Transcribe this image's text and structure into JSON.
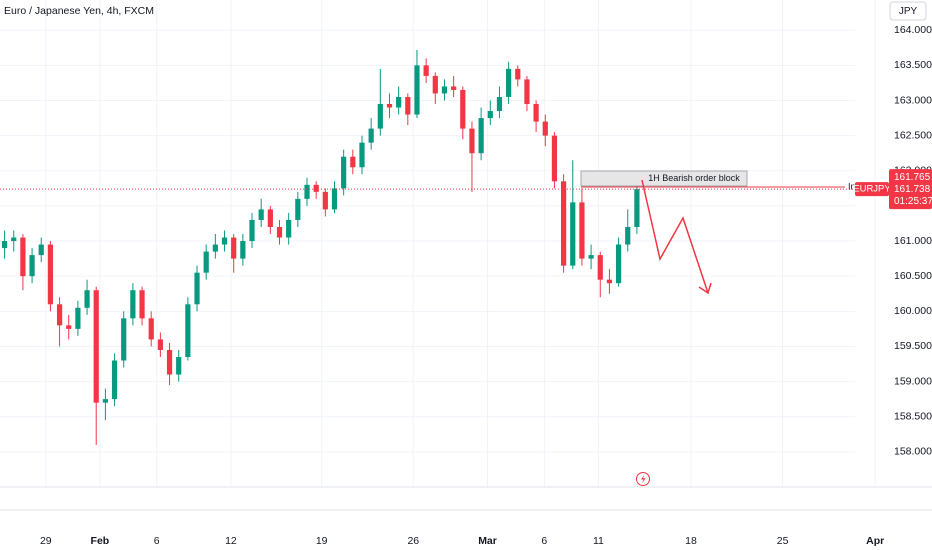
{
  "chart_data": {
    "type": "candlestick",
    "title": "Euro / Japanese Yen, 4h, FXCM",
    "currency": "JPY",
    "symbol_label": "EURJPY",
    "last_price": 161.738,
    "upper_price": 161.765,
    "countdown": "01:25:37",
    "truncated_label": "In",
    "annotation": "1H Bearish order block",
    "up_color": "#089981",
    "down_color": "#f23645",
    "grid": true,
    "xlim": [
      -0.5,
      100
    ],
    "xticks": [
      {
        "value": 4.5,
        "label": "29"
      },
      {
        "value": 10.4,
        "label": "Feb"
      },
      {
        "value": 16.6,
        "label": "6"
      },
      {
        "value": 24.7,
        "label": "12"
      },
      {
        "value": 34.6,
        "label": "19"
      },
      {
        "value": 44.6,
        "label": "26"
      },
      {
        "value": 52.7,
        "label": "Mar"
      },
      {
        "value": 58.9,
        "label": "6"
      },
      {
        "value": 64.8,
        "label": "11"
      },
      {
        "value": 74.9,
        "label": "18"
      },
      {
        "value": 84.9,
        "label": "25"
      },
      {
        "value": 95.0,
        "label": "Apr"
      }
    ],
    "ylim": [
      157.5,
      164.43
    ],
    "yticks": [
      {
        "value": 158,
        "label": "158.000"
      },
      {
        "value": 158.5,
        "label": "158.500"
      },
      {
        "value": 159,
        "label": "159.000"
      },
      {
        "value": 159.5,
        "label": "159.500"
      },
      {
        "value": 160,
        "label": "160.000"
      },
      {
        "value": 160.5,
        "label": "160.500"
      },
      {
        "value": 161,
        "label": "161.000"
      },
      {
        "value": 161.5,
        "label": "161.500"
      },
      {
        "value": 162,
        "label": "162.000"
      },
      {
        "value": 162.5,
        "label": "162.500"
      },
      {
        "value": 163,
        "label": "163.000"
      },
      {
        "value": 163.5,
        "label": "163.500"
      },
      {
        "value": 164,
        "label": "164.000"
      }
    ],
    "open": [
      160.9,
      161.0,
      161.05,
      160.5,
      160.8,
      160.95,
      160.1,
      159.8,
      159.75,
      160.05,
      160.3,
      158.7,
      158.75,
      159.3,
      159.9,
      160.3,
      159.9,
      159.6,
      159.45,
      159.1,
      159.35,
      160.1,
      160.55,
      160.85,
      160.95,
      161.05,
      160.75,
      161.0,
      161.3,
      161.45,
      161.2,
      161.05,
      161.3,
      161.6,
      161.8,
      161.7,
      161.45,
      161.75,
      162.2,
      162.05,
      162.4,
      162.6,
      162.95,
      162.9,
      163.05,
      162.8,
      163.5,
      163.35,
      163.1,
      163.2,
      163.15,
      162.6,
      162.25,
      162.75,
      162.85,
      163.05,
      163.45,
      163.3,
      162.95,
      162.7,
      162.5,
      161.85,
      160.65,
      161.55,
      160.75,
      160.8,
      160.45,
      160.4,
      160.95,
      161.2
    ],
    "high": [
      161.15,
      161.15,
      161.1,
      160.9,
      161.05,
      161.0,
      160.2,
      159.95,
      160.15,
      160.45,
      160.35,
      158.9,
      159.4,
      160.0,
      160.4,
      160.35,
      160.0,
      159.7,
      159.55,
      159.45,
      160.2,
      160.65,
      160.95,
      161.1,
      161.15,
      161.1,
      161.1,
      161.4,
      161.6,
      161.5,
      161.3,
      161.4,
      161.7,
      161.9,
      161.85,
      161.75,
      161.85,
      162.3,
      162.3,
      162.5,
      162.75,
      163.45,
      163.1,
      163.2,
      163.1,
      163.72,
      163.6,
      163.4,
      163.3,
      163.35,
      163.2,
      162.7,
      162.9,
      163.0,
      163.2,
      163.55,
      163.5,
      163.35,
      163.0,
      162.8,
      162.55,
      161.95,
      162.15,
      161.75,
      160.95,
      160.85,
      160.6,
      161.05,
      161.45,
      161.95
    ],
    "low": [
      160.75,
      160.85,
      160.3,
      160.4,
      160.7,
      160.0,
      159.5,
      159.6,
      159.65,
      159.95,
      158.1,
      158.45,
      158.65,
      159.2,
      159.8,
      159.8,
      159.5,
      159.35,
      158.95,
      159.0,
      159.3,
      160.0,
      160.45,
      160.75,
      160.85,
      160.55,
      160.65,
      160.9,
      161.2,
      161.1,
      160.95,
      160.95,
      161.2,
      161.5,
      161.6,
      161.35,
      161.4,
      161.65,
      161.95,
      161.95,
      162.3,
      162.5,
      162.75,
      162.8,
      162.65,
      162.75,
      163.25,
      162.95,
      163.0,
      163.05,
      162.45,
      161.7,
      162.15,
      162.65,
      162.75,
      162.95,
      163.2,
      162.85,
      162.55,
      162.35,
      161.75,
      160.55,
      160.6,
      160.65,
      160.6,
      160.2,
      160.25,
      160.35,
      160.85,
      161.1
    ],
    "close": [
      161.0,
      161.05,
      160.5,
      160.8,
      160.95,
      160.1,
      159.8,
      159.75,
      160.05,
      160.3,
      158.7,
      158.75,
      159.3,
      159.9,
      160.3,
      159.9,
      159.6,
      159.45,
      159.1,
      159.35,
      160.1,
      160.55,
      160.85,
      160.95,
      161.05,
      160.75,
      161.0,
      161.3,
      161.45,
      161.2,
      161.05,
      161.3,
      161.6,
      161.8,
      161.7,
      161.45,
      161.75,
      162.2,
      162.05,
      162.4,
      162.6,
      162.95,
      162.9,
      163.05,
      162.8,
      163.5,
      163.35,
      163.1,
      163.2,
      163.15,
      162.6,
      162.25,
      162.75,
      162.85,
      163.05,
      163.45,
      163.3,
      162.95,
      162.7,
      162.5,
      161.85,
      160.65,
      161.55,
      160.75,
      160.8,
      160.45,
      160.4,
      160.95,
      161.2,
      161.738
    ]
  }
}
